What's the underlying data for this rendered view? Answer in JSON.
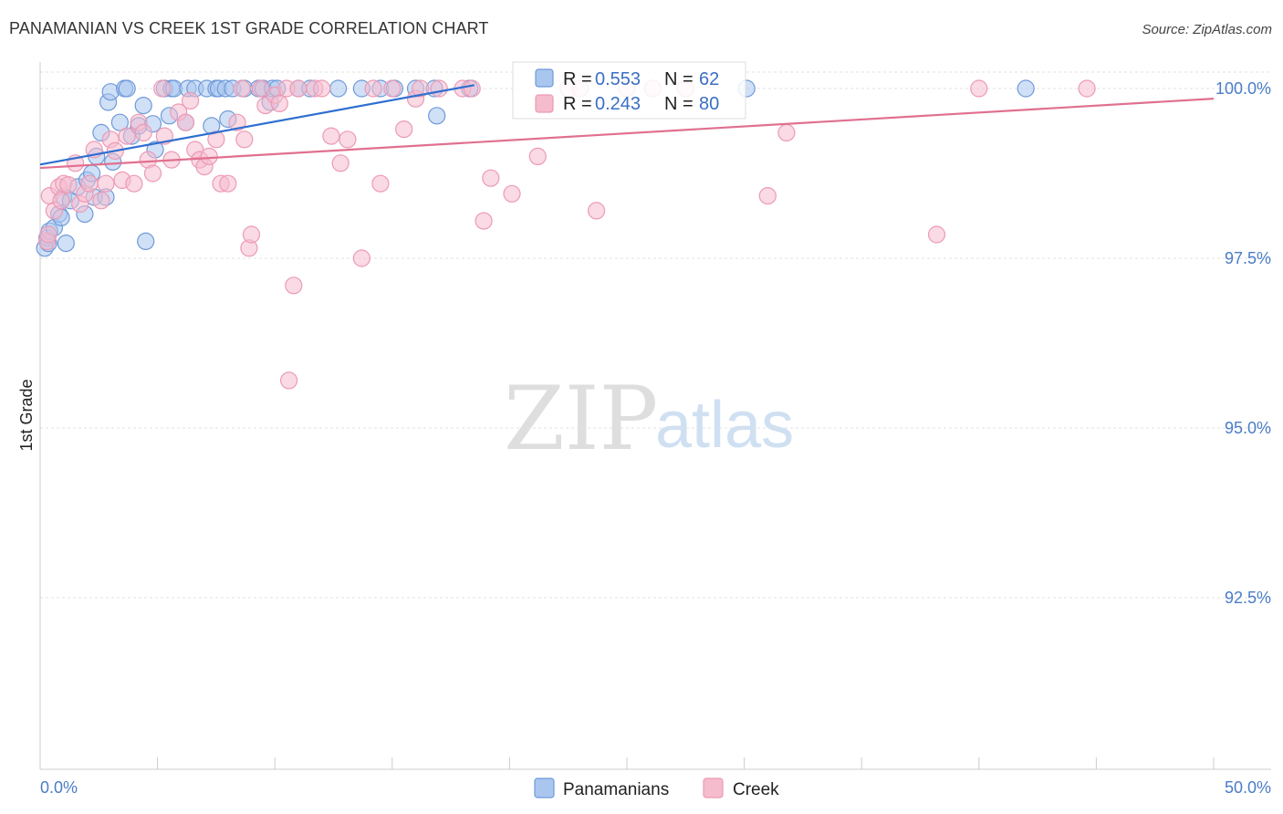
{
  "header": {
    "title": "PANAMANIAN VS CREEK 1ST GRADE CORRELATION CHART",
    "source": "Source: ZipAtlas.com"
  },
  "watermark": {
    "zip": "ZIP",
    "atlas": "atlas"
  },
  "colors": {
    "blue_fill": "#a9c6ef",
    "blue_stroke": "#6f9ad8",
    "blue_line": "#2f6fd0",
    "pink_fill": "#f5bccd",
    "pink_stroke": "#ec9ab5",
    "pink_line": "#e0708f",
    "tick_color": "#4a7cc7"
  },
  "legend": {
    "rows": [
      {
        "r_label": "R =",
        "r_value": "0.553",
        "n_label": "N =",
        "n_value": "62"
      },
      {
        "r_label": "R =",
        "r_value": "0.243",
        "n_label": "N =",
        "n_value": "80"
      }
    ]
  },
  "chart_data": {
    "type": "scatter",
    "title": "PANAMANIAN VS CREEK 1ST GRADE CORRELATION CHART",
    "xlabel": "",
    "ylabel": "1st Grade",
    "xlim": [
      0,
      50
    ],
    "ylim": [
      90.0,
      100.45
    ],
    "x_tick_labels": [
      "0.0%",
      "50.0%"
    ],
    "y_ticks": [
      92.5,
      95.0,
      97.5,
      100.0
    ],
    "y_tick_labels": [
      "92.5%",
      "95.0%",
      "97.5%",
      "100.0%"
    ],
    "grid": true,
    "legend_position": "top-center",
    "series": [
      {
        "name": "Panamanians",
        "color": "blue",
        "r": 0.553,
        "n": 62,
        "trend": {
          "x": [
            0,
            18.5
          ],
          "y": [
            98.88,
            100.05
          ]
        },
        "points": [
          [
            0.2,
            97.65
          ],
          [
            0.3,
            97.8
          ],
          [
            0.35,
            97.72
          ],
          [
            0.4,
            97.9
          ],
          [
            0.6,
            97.95
          ],
          [
            0.8,
            98.15
          ],
          [
            0.9,
            98.1
          ],
          [
            1.0,
            98.4
          ],
          [
            1.1,
            97.72
          ],
          [
            1.3,
            98.35
          ],
          [
            1.6,
            98.55
          ],
          [
            1.9,
            98.15
          ],
          [
            2.0,
            98.65
          ],
          [
            2.2,
            98.75
          ],
          [
            2.3,
            98.4
          ],
          [
            2.4,
            99.0
          ],
          [
            2.6,
            99.35
          ],
          [
            2.8,
            98.4
          ],
          [
            2.9,
            99.8
          ],
          [
            3.0,
            99.95
          ],
          [
            3.1,
            98.92
          ],
          [
            3.4,
            99.5
          ],
          [
            3.6,
            100.0
          ],
          [
            3.7,
            100.0
          ],
          [
            3.9,
            99.3
          ],
          [
            4.2,
            99.45
          ],
          [
            4.4,
            99.75
          ],
          [
            4.5,
            97.75
          ],
          [
            4.8,
            99.48
          ],
          [
            4.9,
            99.1
          ],
          [
            5.3,
            100.0
          ],
          [
            5.5,
            99.6
          ],
          [
            5.6,
            100.0
          ],
          [
            5.7,
            100.0
          ],
          [
            6.2,
            99.5
          ],
          [
            6.3,
            100.0
          ],
          [
            6.6,
            100.0
          ],
          [
            7.1,
            100.0
          ],
          [
            7.3,
            99.45
          ],
          [
            7.5,
            100.0
          ],
          [
            7.6,
            100.0
          ],
          [
            7.9,
            100.0
          ],
          [
            8.0,
            99.55
          ],
          [
            8.2,
            100.0
          ],
          [
            8.7,
            100.0
          ],
          [
            9.3,
            100.0
          ],
          [
            9.5,
            100.0
          ],
          [
            9.8,
            99.8
          ],
          [
            9.9,
            100.0
          ],
          [
            10.1,
            100.0
          ],
          [
            11.0,
            100.0
          ],
          [
            11.5,
            100.0
          ],
          [
            12.7,
            100.0
          ],
          [
            13.7,
            100.0
          ],
          [
            14.5,
            100.0
          ],
          [
            15.1,
            100.0
          ],
          [
            16.0,
            100.0
          ],
          [
            16.8,
            100.0
          ],
          [
            16.9,
            99.6
          ],
          [
            18.3,
            100.0
          ],
          [
            30.1,
            100.0
          ],
          [
            42.0,
            100.0
          ]
        ]
      },
      {
        "name": "Creek",
        "color": "pink",
        "r": 0.243,
        "n": 80,
        "trend": {
          "x": [
            0,
            50
          ],
          "y": [
            98.83,
            99.85
          ]
        },
        "points": [
          [
            0.3,
            97.75
          ],
          [
            0.35,
            97.85
          ],
          [
            0.4,
            98.42
          ],
          [
            0.6,
            98.2
          ],
          [
            0.8,
            98.55
          ],
          [
            0.9,
            98.35
          ],
          [
            1.0,
            98.6
          ],
          [
            1.2,
            98.58
          ],
          [
            1.5,
            98.9
          ],
          [
            1.7,
            98.3
          ],
          [
            1.9,
            98.45
          ],
          [
            2.1,
            98.6
          ],
          [
            2.3,
            99.1
          ],
          [
            2.6,
            98.35
          ],
          [
            2.8,
            98.6
          ],
          [
            3.0,
            99.25
          ],
          [
            3.2,
            99.08
          ],
          [
            3.5,
            98.65
          ],
          [
            3.7,
            99.3
          ],
          [
            4.0,
            98.6
          ],
          [
            4.2,
            99.5
          ],
          [
            4.4,
            99.35
          ],
          [
            4.6,
            98.95
          ],
          [
            4.8,
            98.75
          ],
          [
            5.2,
            100.0
          ],
          [
            5.3,
            99.3
          ],
          [
            5.6,
            98.95
          ],
          [
            5.9,
            99.65
          ],
          [
            6.2,
            99.5
          ],
          [
            6.4,
            99.82
          ],
          [
            6.6,
            99.1
          ],
          [
            6.8,
            98.95
          ],
          [
            7.0,
            98.85
          ],
          [
            7.2,
            99.0
          ],
          [
            7.5,
            99.25
          ],
          [
            7.7,
            98.6
          ],
          [
            8.0,
            98.6
          ],
          [
            8.4,
            99.5
          ],
          [
            8.6,
            100.0
          ],
          [
            8.7,
            99.25
          ],
          [
            8.9,
            97.65
          ],
          [
            9.0,
            97.85
          ],
          [
            9.4,
            100.0
          ],
          [
            9.6,
            99.75
          ],
          [
            10.0,
            99.9
          ],
          [
            10.2,
            99.78
          ],
          [
            10.5,
            100.0
          ],
          [
            10.6,
            95.7
          ],
          [
            10.8,
            97.1
          ],
          [
            11.0,
            100.0
          ],
          [
            11.7,
            100.0
          ],
          [
            12.0,
            100.0
          ],
          [
            12.4,
            99.3
          ],
          [
            12.8,
            98.9
          ],
          [
            13.1,
            99.25
          ],
          [
            13.7,
            97.5
          ],
          [
            14.2,
            100.0
          ],
          [
            14.5,
            98.6
          ],
          [
            15.0,
            100.0
          ],
          [
            15.5,
            99.4
          ],
          [
            16.0,
            99.85
          ],
          [
            16.2,
            100.0
          ],
          [
            17.0,
            100.0
          ],
          [
            18.0,
            100.0
          ],
          [
            18.4,
            100.0
          ],
          [
            18.9,
            98.05
          ],
          [
            19.2,
            98.68
          ],
          [
            20.1,
            98.45
          ],
          [
            21.2,
            99.0
          ],
          [
            22.5,
            100.0
          ],
          [
            23.0,
            100.0
          ],
          [
            23.7,
            98.2
          ],
          [
            25.0,
            100.0
          ],
          [
            26.1,
            100.0
          ],
          [
            27.5,
            100.0
          ],
          [
            31.0,
            98.42
          ],
          [
            31.8,
            99.35
          ],
          [
            38.2,
            97.85
          ],
          [
            40.0,
            100.0
          ],
          [
            44.6,
            100.0
          ]
        ]
      }
    ]
  }
}
